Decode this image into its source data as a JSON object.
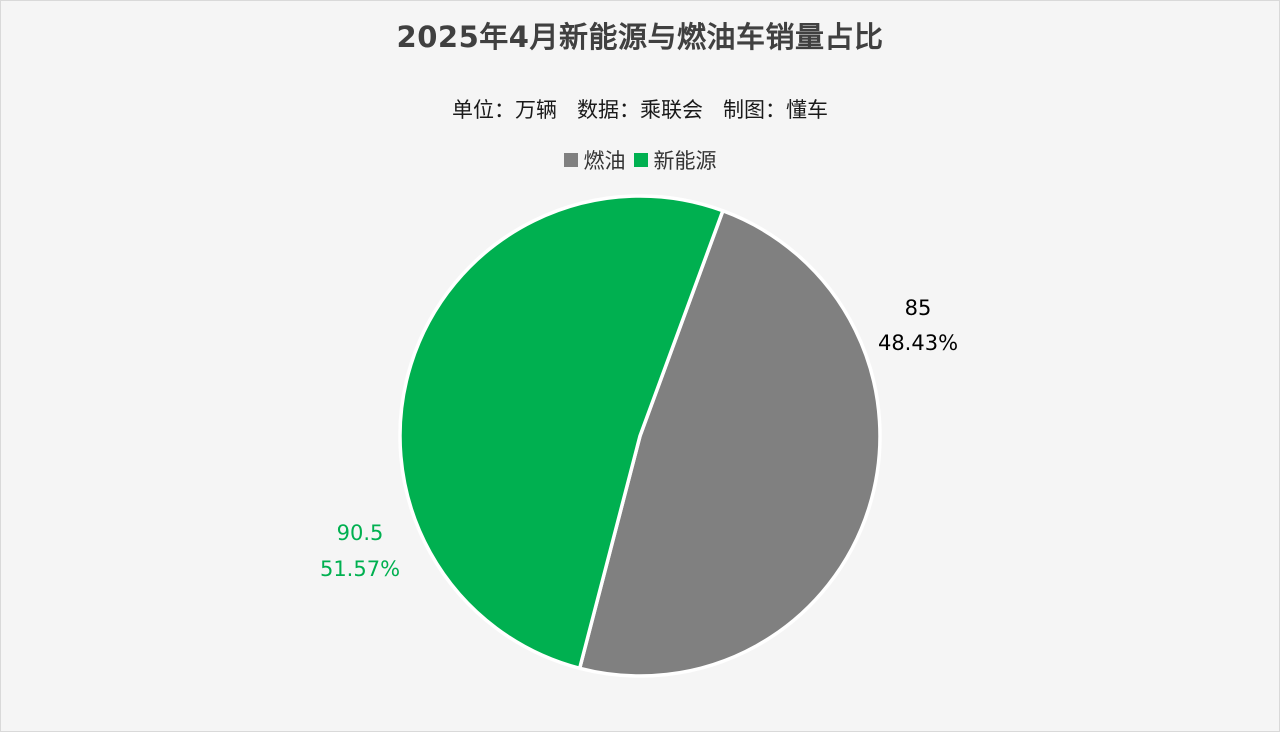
{
  "chart_data": {
    "type": "pie",
    "title": "2025年4月新能源与燃油车销量占比",
    "subtitle": "单位：万辆   数据：乘联会   制图：懂车",
    "legend_position": "top",
    "slices": [
      {
        "name": "燃油",
        "value": 85,
        "percent": "48.43%",
        "value_label": "85",
        "color": "#808080"
      },
      {
        "name": "新能源",
        "value": 90.5,
        "percent": "51.57%",
        "value_label": "90.5",
        "color": "#00b050"
      }
    ]
  },
  "colors": {
    "background": "#f5f5f5",
    "title": "#404040",
    "slice_separator": "#ffffff",
    "gas_label": "#000000",
    "nev_label": "#00b050"
  }
}
